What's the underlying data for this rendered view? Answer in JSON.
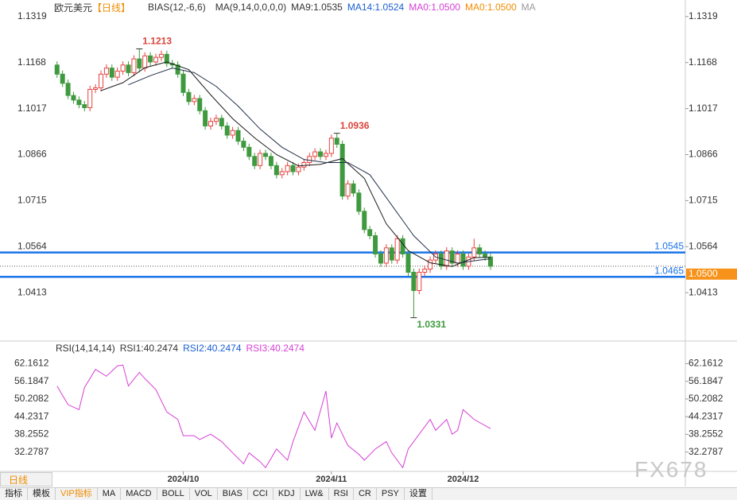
{
  "header": {
    "symbol": "欧元美元",
    "period": "【日线】",
    "indicators": [
      "BIAS(12,-6,6)",
      "MA(9,14,0,0,0,0)",
      "MA9:1.0535",
      "MA14:1.0524",
      "MA0:1.0500",
      "MA0:1.0500",
      "MA"
    ]
  },
  "rsi_header": [
    "RSI(14,14,14)",
    "RSI1:40.2474",
    "RSI2:40.2474",
    "RSI3:40.2474"
  ],
  "toolbar": {
    "tab": "日线",
    "items": [
      "指标",
      "模板",
      "VIP指标",
      "MA",
      "MACD",
      "BOLL",
      "VOL",
      "BIAS",
      "CCI",
      "KDJ",
      "LW&",
      "RSI",
      "CR",
      "PSY",
      "设置"
    ]
  },
  "watermark": "FX678",
  "chart_data": [
    {
      "type": "candlestick",
      "up_color": "#e8423f",
      "down_color": "#3f9a3f",
      "xlim": [
        -9.4,
        115.5
      ],
      "ylim": [
        1.0257,
        1.1342
      ],
      "yticks": [
        1.1319,
        1.1168,
        1.1017,
        1.0866,
        1.0715,
        1.0564,
        1.0413
      ],
      "xticks": [
        {
          "value": 24,
          "label": "2024/10"
        },
        {
          "value": 51,
          "label": "2024/11"
        },
        {
          "value": 75,
          "label": "2024/12"
        }
      ],
      "open": [
        1.116,
        1.113,
        1.11,
        1.106,
        1.1045,
        1.103,
        1.102,
        1.108,
        1.1085,
        1.113,
        1.115,
        1.112,
        1.114,
        1.116,
        1.1135,
        1.118,
        1.115,
        1.119,
        1.117,
        1.1185,
        1.1195,
        1.1165,
        1.116,
        1.113,
        1.107,
        1.104,
        1.105,
        1.101,
        1.096,
        1.0975,
        1.0985,
        1.096,
        1.093,
        1.0945,
        1.091,
        1.089,
        1.086,
        1.083,
        1.087,
        1.086,
        1.083,
        1.08,
        1.081,
        1.083,
        1.081,
        1.0825,
        1.084,
        1.086,
        1.0875,
        1.086,
        1.087,
        1.092,
        1.09,
        1.073,
        1.077,
        1.074,
        1.068,
        1.062,
        1.06,
        1.054,
        1.051,
        1.056,
        1.052,
        1.059,
        1.054,
        1.048,
        1.042,
        1.048,
        1.049,
        1.052,
        1.054,
        1.05,
        1.055,
        1.051,
        1.054,
        1.05,
        1.053,
        1.056,
        1.054,
        1.053
      ],
      "high": [
        1.1172,
        1.1142,
        1.1112,
        1.1072,
        1.1057,
        1.1042,
        1.1092,
        1.1097,
        1.1142,
        1.1162,
        1.1162,
        1.1152,
        1.1172,
        1.1172,
        1.1192,
        1.1213,
        1.1202,
        1.1202,
        1.1197,
        1.1207,
        1.1207,
        1.1177,
        1.1172,
        1.1142,
        1.1082,
        1.1062,
        1.1062,
        1.1022,
        1.0987,
        1.0997,
        1.0997,
        1.0972,
        1.0957,
        1.0957,
        1.0922,
        1.0902,
        1.0872,
        1.0882,
        1.0882,
        1.0872,
        1.0842,
        1.0822,
        1.0842,
        1.0842,
        1.0837,
        1.0852,
        1.0872,
        1.0887,
        1.0887,
        1.0882,
        1.0932,
        1.0936,
        1.0912,
        1.0782,
        1.0782,
        1.0752,
        1.0692,
        1.0632,
        1.0612,
        1.0552,
        1.0572,
        1.0572,
        1.0602,
        1.0602,
        1.0552,
        1.0492,
        1.0492,
        1.0502,
        1.0532,
        1.0552,
        1.0552,
        1.0562,
        1.0562,
        1.0552,
        1.0552,
        1.0542,
        1.059,
        1.0572,
        1.0552,
        1.0542
      ],
      "low": [
        1.1118,
        1.1088,
        1.1048,
        1.1033,
        1.1018,
        1.1008,
        1.1008,
        1.1068,
        1.1073,
        1.1118,
        1.1108,
        1.1108,
        1.1128,
        1.1123,
        1.1123,
        1.1138,
        1.1138,
        1.1158,
        1.1158,
        1.1173,
        1.1153,
        1.1148,
        1.1118,
        1.1058,
        1.1028,
        1.1028,
        1.0998,
        1.0948,
        1.0948,
        1.0963,
        1.0948,
        1.0918,
        1.0918,
        1.0898,
        1.0878,
        1.0848,
        1.0818,
        1.0818,
        1.0848,
        1.0818,
        1.0788,
        1.0788,
        1.0798,
        1.0798,
        1.0798,
        1.0813,
        1.0828,
        1.0848,
        1.0848,
        1.0848,
        1.0858,
        1.0888,
        1.0718,
        1.0718,
        1.0728,
        1.0668,
        1.0608,
        1.0588,
        1.0528,
        1.0498,
        1.0498,
        1.0508,
        1.0508,
        1.0528,
        1.0468,
        1.0331,
        1.0408,
        1.0468,
        1.0478,
        1.0508,
        1.0488,
        1.0488,
        1.0498,
        1.0498,
        1.0488,
        1.0488,
        1.0518,
        1.0528,
        1.0518,
        1.0488
      ],
      "close": [
        1.113,
        1.11,
        1.106,
        1.1045,
        1.103,
        1.102,
        1.108,
        1.1085,
        1.113,
        1.115,
        1.112,
        1.114,
        1.116,
        1.1135,
        1.118,
        1.115,
        1.119,
        1.117,
        1.1185,
        1.1195,
        1.1165,
        1.116,
        1.113,
        1.107,
        1.104,
        1.105,
        1.101,
        1.096,
        1.0975,
        1.0985,
        1.096,
        1.093,
        1.0945,
        1.091,
        1.089,
        1.086,
        1.083,
        1.087,
        1.086,
        1.083,
        1.08,
        1.081,
        1.083,
        1.081,
        1.0825,
        1.084,
        1.086,
        1.0875,
        1.086,
        1.087,
        1.092,
        1.09,
        1.073,
        1.077,
        1.074,
        1.068,
        1.062,
        1.06,
        1.054,
        1.051,
        1.056,
        1.052,
        1.059,
        1.054,
        1.048,
        1.042,
        1.048,
        1.049,
        1.052,
        1.054,
        1.05,
        1.055,
        1.051,
        1.054,
        1.05,
        1.053,
        1.056,
        1.054,
        1.053,
        1.05
      ],
      "series": [
        {
          "color": "#1b1b1b",
          "x": [
            9,
            13,
            17,
            21,
            25,
            29,
            33,
            37,
            41,
            45,
            49,
            53,
            57,
            61,
            65,
            69,
            73,
            77,
            80
          ],
          "values": [
            1.1076,
            1.1102,
            1.1151,
            1.117,
            1.1145,
            1.1062,
            1.0984,
            1.0921,
            1.0866,
            1.0829,
            1.0834,
            1.0853,
            1.0788,
            1.0639,
            1.0551,
            1.0511,
            1.0499,
            1.0528,
            1.0529
          ]
        },
        {
          "color": "#22304a",
          "x": [
            14,
            18,
            22,
            26,
            30,
            34,
            38,
            42,
            46,
            50,
            54,
            58,
            62,
            66,
            70,
            74,
            78,
            80
          ],
          "values": [
            1.1095,
            1.1125,
            1.115,
            1.1135,
            1.109,
            1.1025,
            1.095,
            1.089,
            1.085,
            1.084,
            1.084,
            1.08,
            1.07,
            1.06,
            1.053,
            1.051,
            1.052,
            1.0524
          ]
        }
      ],
      "hlines": [
        {
          "value": 1.0545,
          "color": "#1a73e8"
        },
        {
          "value": 1.0465,
          "color": "#1a73e8"
        }
      ],
      "last_price": {
        "value": 1.05,
        "label": "1.0500"
      },
      "last_color": "#f7931a",
      "annotations": [
        1.1213,
        1.0936,
        1.0331
      ]
    },
    {
      "type": "line",
      "xlim": [
        -9.4,
        115.5
      ],
      "ylim": [
        26,
        64.7
      ],
      "yticks": [
        62.1612,
        56.1847,
        50.2082,
        44.2317,
        38.2552,
        32.2787
      ],
      "series": [
        {
          "color": "#d63fd6",
          "x": [
            1,
            3,
            5,
            6,
            8,
            10,
            12,
            13,
            14,
            16,
            17,
            19,
            21,
            23,
            24,
            26,
            27,
            29,
            31,
            33,
            35,
            36,
            38,
            39,
            41,
            43,
            44,
            46,
            48,
            50,
            51,
            52,
            54,
            56,
            57,
            59,
            61,
            62,
            64,
            65,
            67,
            69,
            70,
            72,
            73,
            74,
            75,
            77,
            80
          ],
          "values": [
            54.6,
            48.3,
            46.6,
            54.1,
            60.2,
            57.9,
            61.4,
            61.7,
            54.6,
            59.2,
            57.1,
            53.4,
            45.8,
            43.3,
            37.8,
            37.8,
            36.5,
            38.3,
            35.8,
            32.0,
            28.3,
            32.0,
            29.0,
            27.0,
            33.3,
            29.5,
            35.8,
            45.8,
            39.6,
            52.9,
            37.0,
            42.1,
            34.5,
            31.5,
            29.5,
            33.3,
            35.8,
            32.0,
            27.0,
            33.3,
            38.3,
            43.3,
            39.6,
            43.3,
            38.3,
            39.6,
            46.6,
            43.3,
            40.2
          ]
        }
      ]
    }
  ]
}
